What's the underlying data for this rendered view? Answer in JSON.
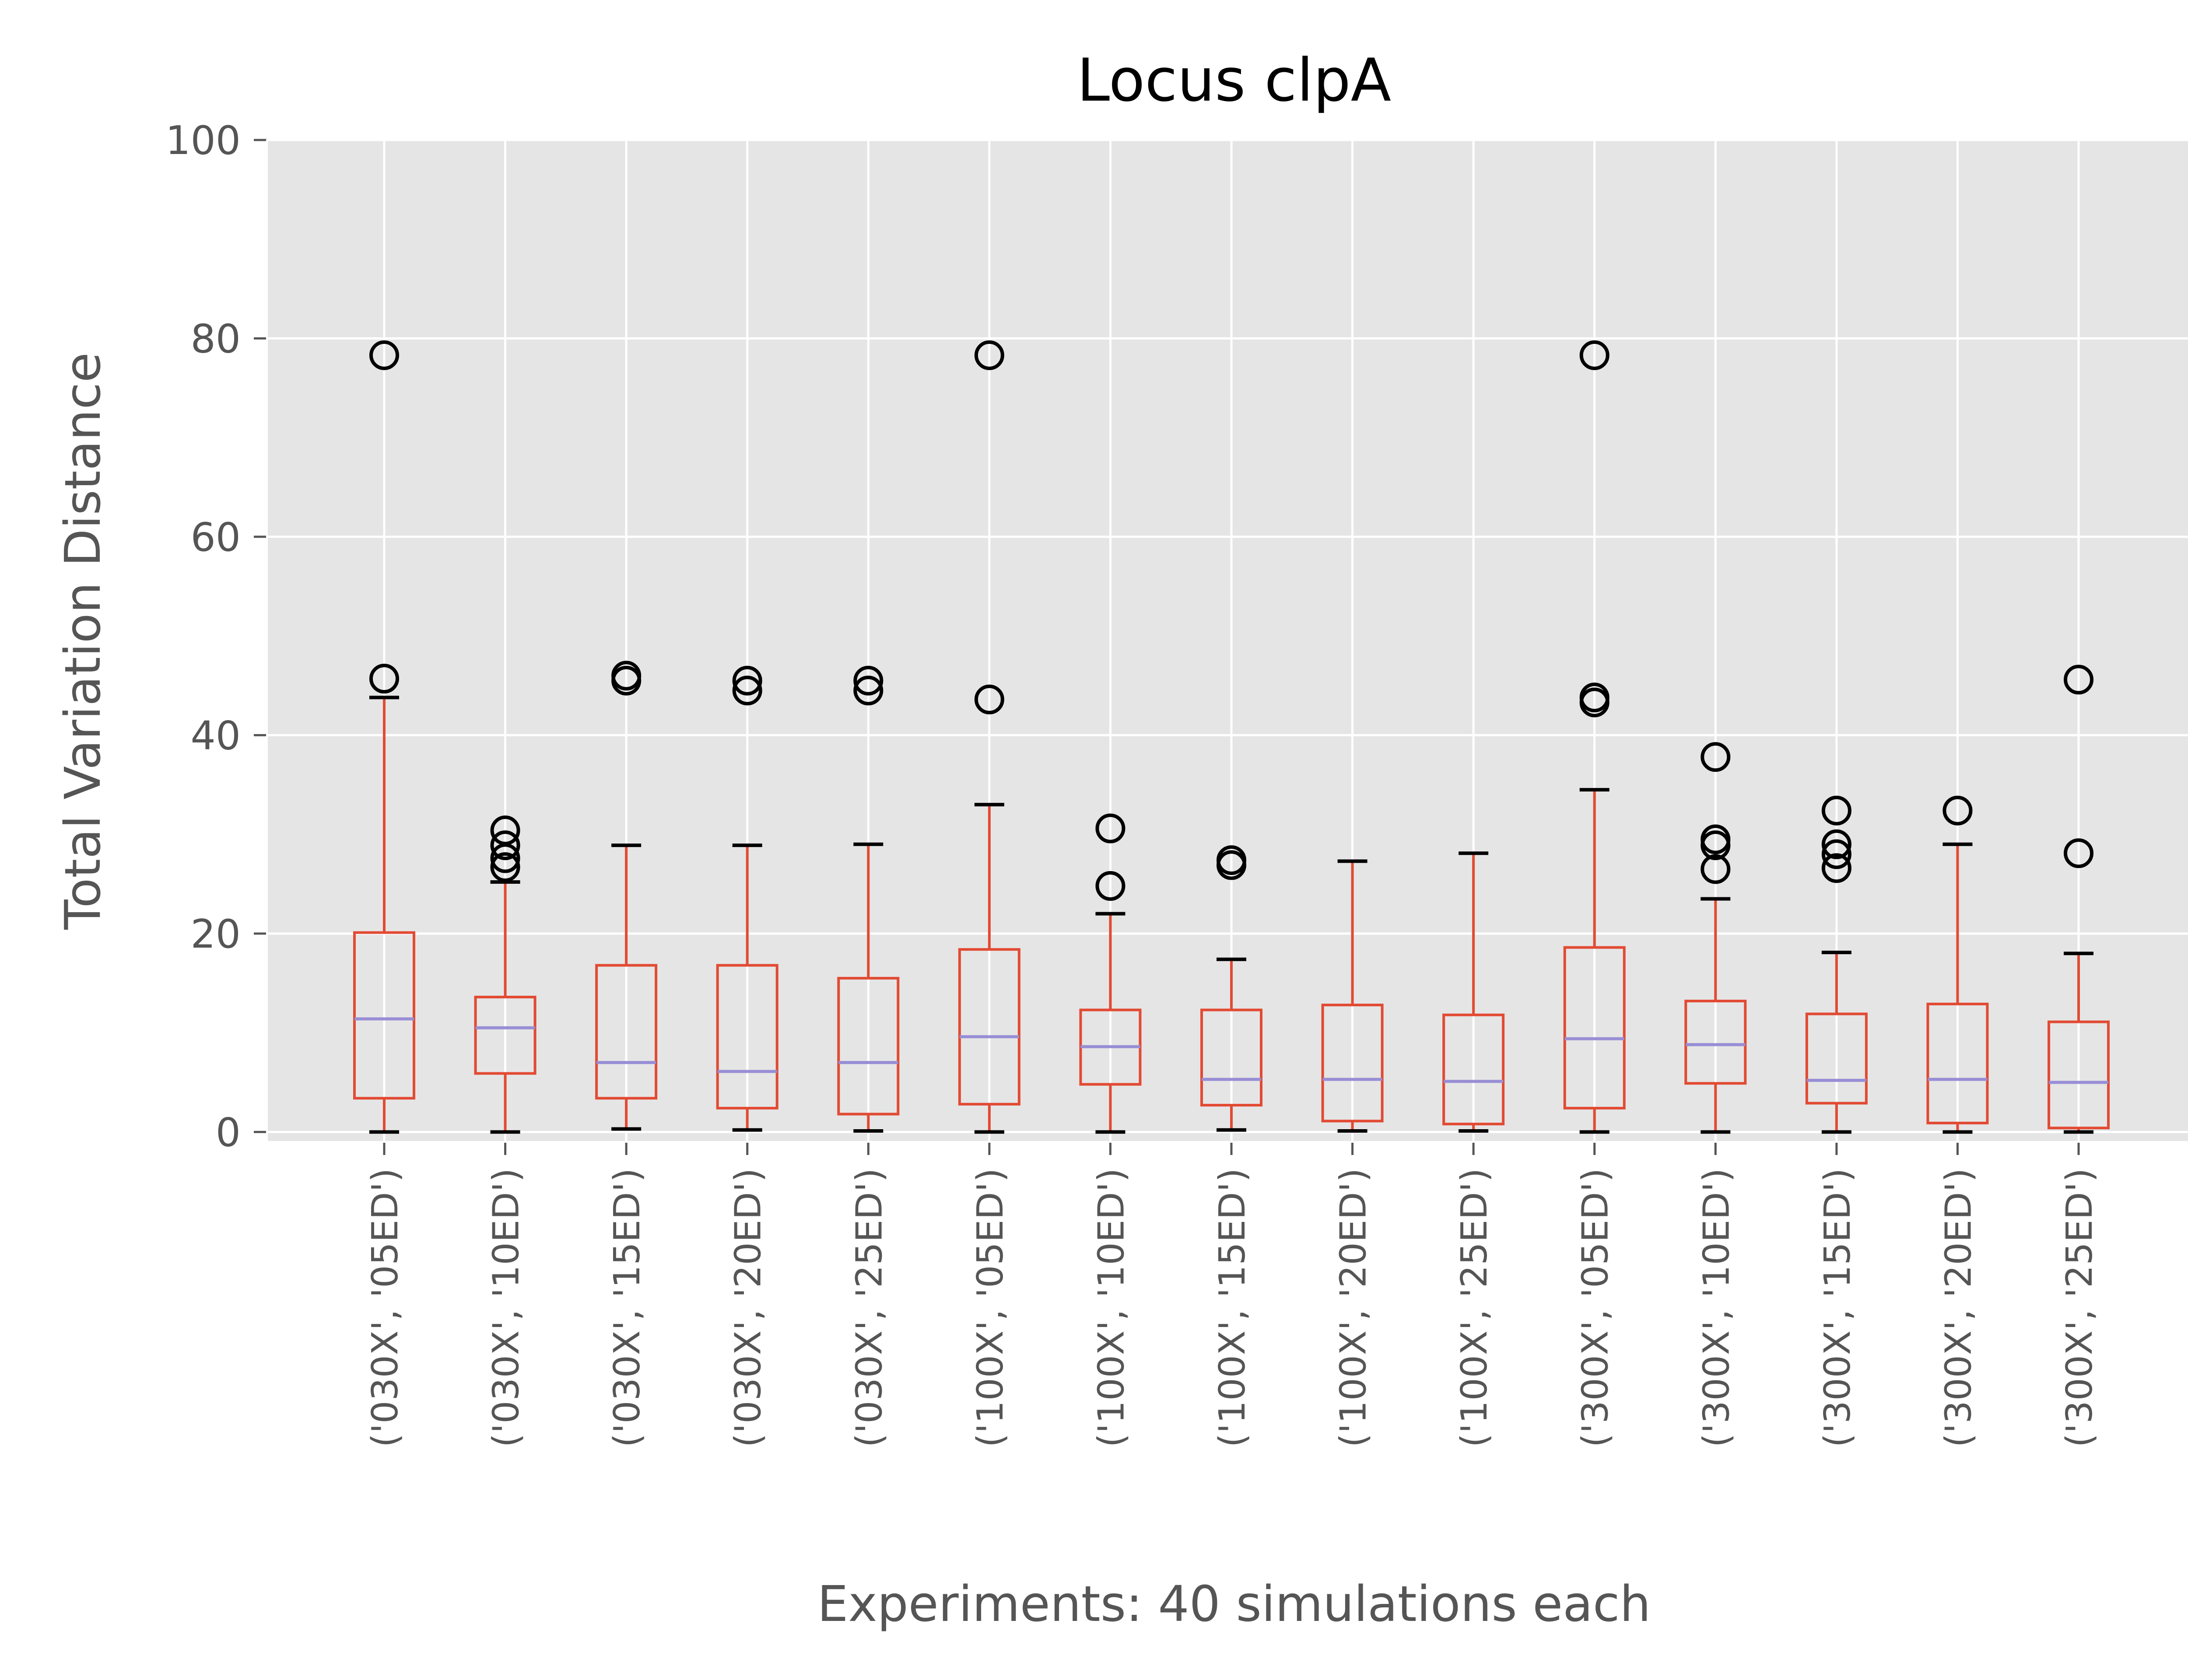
{
  "chart_data": {
    "type": "box",
    "title": "Locus clpA",
    "xlabel": "Experiments: 40 simulations each",
    "ylabel": "Total Variation Distance",
    "ylim": [
      -1,
      100
    ],
    "yticks": [
      0,
      20,
      40,
      60,
      80,
      100
    ],
    "grid": true,
    "style": "ggplot",
    "colors": {
      "plot_bg": "#E5E5E5",
      "grid": "#FFFFFF",
      "box": "#E24A33",
      "median": "#988ED5",
      "cap": "#000000",
      "flier": "#000000",
      "tick_text": "#555555"
    },
    "categories": [
      "('030X', '05ED')",
      "('030X', '10ED')",
      "('030X', '15ED')",
      "('030X', '20ED')",
      "('030X', '25ED')",
      "('100X', '05ED')",
      "('100X', '10ED')",
      "('100X', '15ED')",
      "('100X', '20ED')",
      "('100X', '25ED')",
      "('300X', '05ED')",
      "('300X', '10ED')",
      "('300X', '15ED')",
      "('300X', '20ED')",
      "('300X', '25ED')"
    ],
    "boxes": [
      {
        "whislo": 0.0,
        "q1": 3.4,
        "med": 11.4,
        "q3": 20.1,
        "whishi": 43.8,
        "fliers": [
          45.7,
          78.3
        ]
      },
      {
        "whislo": 0.0,
        "q1": 5.9,
        "med": 10.5,
        "q3": 13.6,
        "whishi": 25.2,
        "fliers": [
          26.7,
          27.6,
          28.9,
          30.4
        ]
      },
      {
        "whislo": 0.3,
        "q1": 3.4,
        "med": 7.0,
        "q3": 16.8,
        "whishi": 28.9,
        "fliers": [
          45.5,
          46.0
        ]
      },
      {
        "whislo": 0.2,
        "q1": 2.4,
        "med": 6.1,
        "q3": 16.8,
        "whishi": 28.9,
        "fliers": [
          44.5,
          45.5
        ]
      },
      {
        "whislo": 0.1,
        "q1": 1.8,
        "med": 7.0,
        "q3": 15.5,
        "whishi": 29.0,
        "fliers": [
          44.5,
          45.5
        ]
      },
      {
        "whislo": 0.0,
        "q1": 2.8,
        "med": 9.6,
        "q3": 18.4,
        "whishi": 33.0,
        "fliers": [
          43.6,
          78.3
        ]
      },
      {
        "whislo": 0.0,
        "q1": 4.8,
        "med": 8.6,
        "q3": 12.3,
        "whishi": 22.0,
        "fliers": [
          24.8,
          30.6
        ]
      },
      {
        "whislo": 0.2,
        "q1": 2.7,
        "med": 5.3,
        "q3": 12.3,
        "whishi": 17.4,
        "fliers": [
          26.9,
          27.4
        ]
      },
      {
        "whislo": 0.1,
        "q1": 1.1,
        "med": 5.3,
        "q3": 12.8,
        "whishi": 27.3,
        "fliers": []
      },
      {
        "whislo": 0.1,
        "q1": 0.8,
        "med": 5.1,
        "q3": 11.8,
        "whishi": 28.1,
        "fliers": []
      },
      {
        "whislo": 0.0,
        "q1": 2.4,
        "med": 9.4,
        "q3": 18.6,
        "whishi": 34.5,
        "fliers": [
          43.3,
          43.8,
          78.3
        ]
      },
      {
        "whislo": 0.0,
        "q1": 4.9,
        "med": 8.8,
        "q3": 13.2,
        "whishi": 23.5,
        "fliers": [
          26.5,
          28.9,
          29.5,
          37.8
        ]
      },
      {
        "whislo": 0.0,
        "q1": 2.9,
        "med": 5.2,
        "q3": 11.9,
        "whishi": 18.1,
        "fliers": [
          26.6,
          28.0,
          29.0,
          32.4
        ]
      },
      {
        "whislo": 0.0,
        "q1": 0.9,
        "med": 5.3,
        "q3": 12.9,
        "whishi": 29.0,
        "fliers": [
          32.4
        ]
      },
      {
        "whislo": 0.0,
        "q1": 0.4,
        "med": 5.0,
        "q3": 11.1,
        "whishi": 18.0,
        "fliers": [
          28.1,
          45.6
        ]
      }
    ]
  }
}
